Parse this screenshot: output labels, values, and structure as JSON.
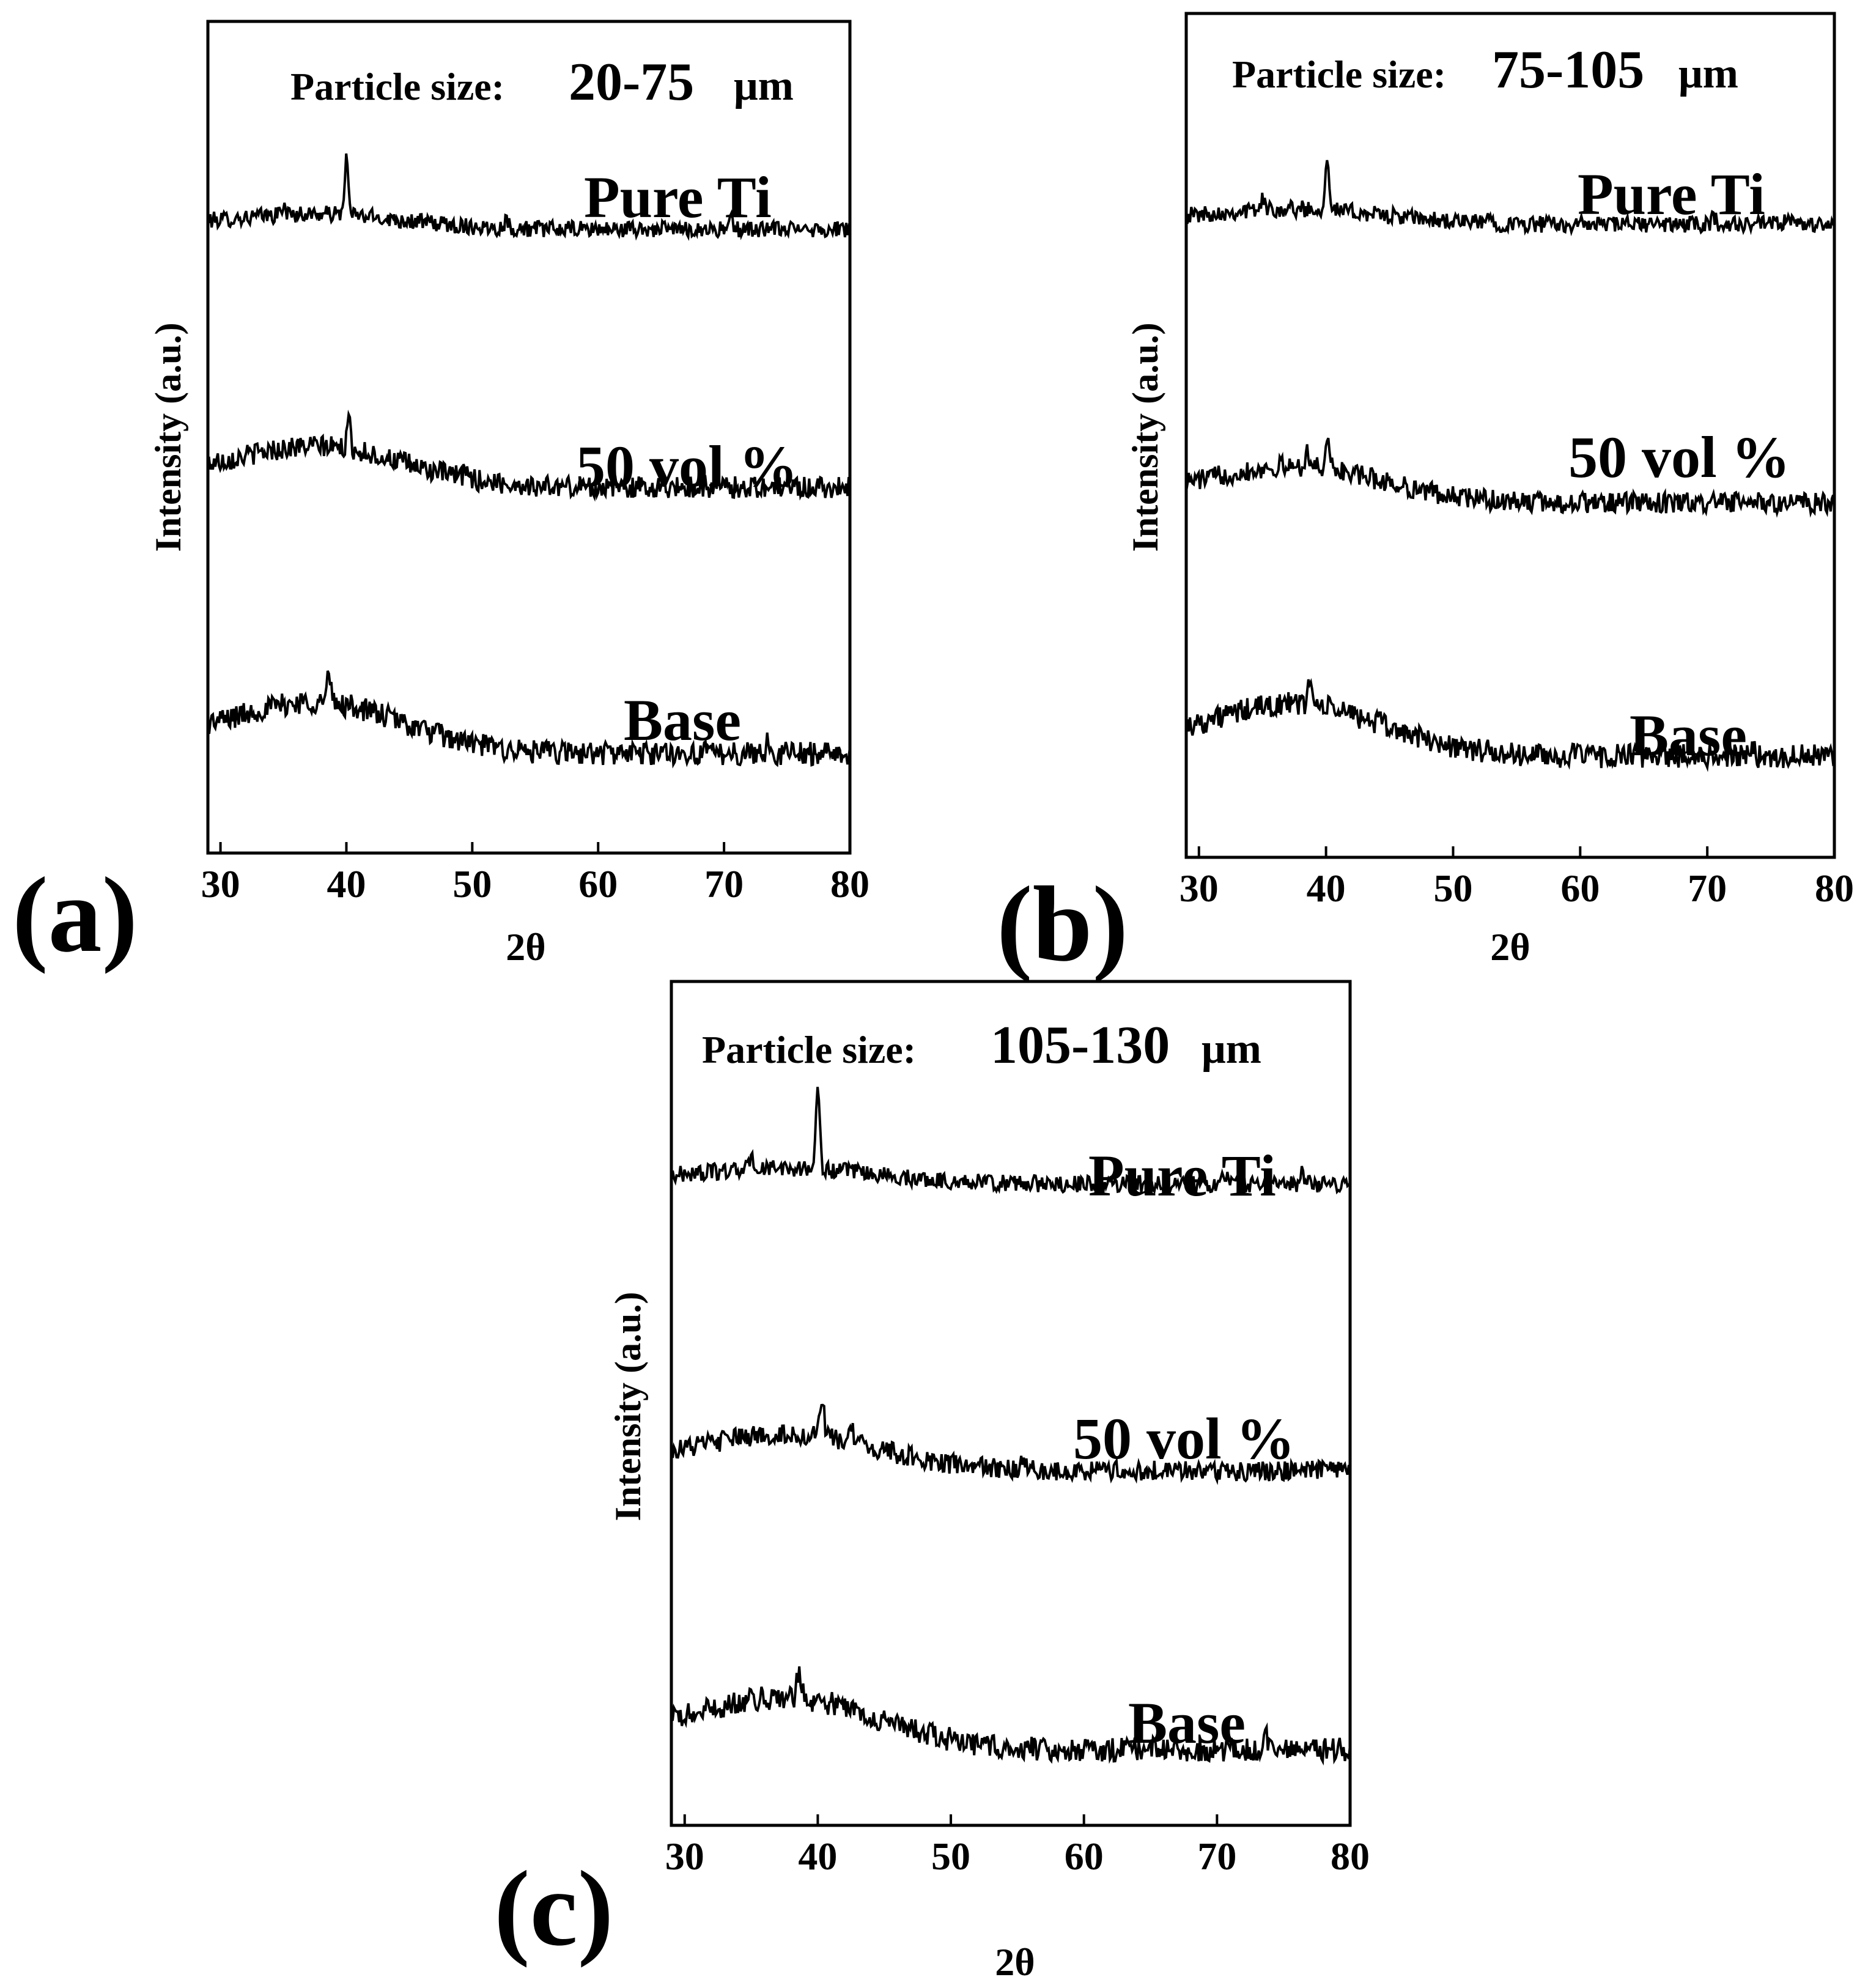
{
  "figure": {
    "panels": [
      {
        "letter": "(a)",
        "title_prefix": "Particle size:",
        "title_value": "20-75",
        "title_unit": "μm",
        "chart_index": 0
      },
      {
        "letter": "(b)",
        "title_prefix": "Particle size:",
        "title_value": "75-105",
        "title_unit": "μm",
        "chart_index": 1
      },
      {
        "letter": "(c)",
        "title_prefix": "Particle size:",
        "title_value": "105-130",
        "title_unit": "μm",
        "chart_index": 2
      }
    ]
  },
  "chart_data": [
    {
      "type": "line",
      "title": "Particle size: 20-75 μm",
      "xlabel": "2θ",
      "ylabel": "Intensity (a.u.)",
      "xlim": [
        29,
        80
      ],
      "ylim": [
        0,
        100
      ],
      "xticks": [
        30,
        40,
        50,
        60,
        70,
        80
      ],
      "grid": false,
      "series": [
        {
          "name": "Pure Ti",
          "offset": 75,
          "peaks": [
            [
              40,
              6.5
            ],
            [
              35,
              1.2
            ],
            [
              52.7,
              1.0
            ],
            [
              70.6,
              1.0
            ],
            [
              76.3,
              1.0
            ]
          ],
          "hump": 1.5
        },
        {
          "name": "50 vol %",
          "offset": 44,
          "peaks": [
            [
              40.2,
              3.0
            ],
            [
              49.5,
              1.2
            ]
          ],
          "hump": 4.0
        },
        {
          "name": "Base",
          "offset": 12,
          "peaks": [
            [
              38.6,
              3.2
            ],
            [
              73.5,
              1.2
            ]
          ],
          "hump": 5.0
        }
      ]
    },
    {
      "type": "line",
      "title": "Particle size: 75-105 μm",
      "xlabel": "2θ",
      "ylabel": "Intensity (a.u.)",
      "xlim": [
        29,
        80
      ],
      "ylim": [
        0,
        100
      ],
      "xticks": [
        30,
        40,
        50,
        60,
        70,
        80
      ],
      "grid": false,
      "series": [
        {
          "name": "Pure Ti",
          "offset": 75,
          "peaks": [
            [
              40.1,
              6.5
            ],
            [
              35,
              1.2
            ],
            [
              52.8,
              1.0
            ],
            [
              70.5,
              1.0
            ],
            [
              76.3,
              1.0
            ]
          ],
          "hump": 1.5
        },
        {
          "name": "50 vol %",
          "offset": 42,
          "peaks": [
            [
              40.1,
              4.0
            ],
            [
              38.5,
              2.0
            ]
          ],
          "hump": 3.5
        },
        {
          "name": "Base",
          "offset": 12,
          "peaks": [
            [
              38.7,
              3.2
            ],
            [
              73.6,
              1.5
            ]
          ],
          "hump": 5.0
        }
      ]
    },
    {
      "type": "line",
      "title": "Particle size: 105-130 μm",
      "xlabel": "2θ",
      "ylabel": "Intensity (a.u.)",
      "xlim": [
        29,
        80
      ],
      "ylim": [
        0,
        100
      ],
      "xticks": [
        30,
        40,
        50,
        60,
        70,
        80
      ],
      "grid": false,
      "series": [
        {
          "name": "Pure Ti",
          "offset": 76,
          "peaks": [
            [
              40,
              9.0
            ],
            [
              35,
              1.5
            ],
            [
              52.9,
              1.2
            ],
            [
              70.6,
              1.2
            ],
            [
              76.4,
              1.2
            ]
          ],
          "hump": 1.5
        },
        {
          "name": "50 vol %",
          "offset": 42,
          "peaks": [
            [
              40.3,
              5.0
            ],
            [
              42.5,
              2.0
            ],
            [
              55.5,
              1.2
            ]
          ],
          "hump": 3.5
        },
        {
          "name": "Base",
          "offset": 9,
          "peaks": [
            [
              38.6,
              3.5
            ],
            [
              73.7,
              1.5
            ]
          ],
          "hump": 5.0
        }
      ]
    }
  ]
}
